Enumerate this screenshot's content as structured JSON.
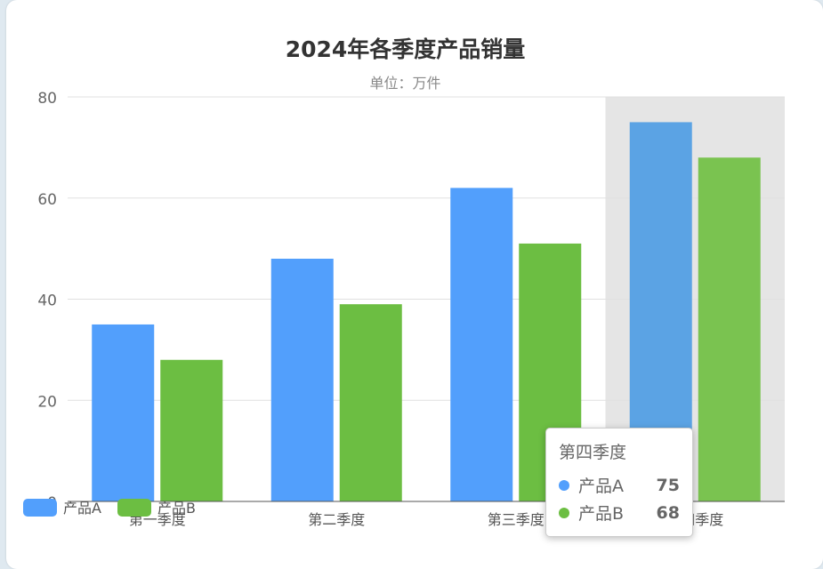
{
  "colors": {
    "series_a": "#529ffc",
    "series_b": "#6cbe42",
    "series_a_highlight": "#5ba3e4",
    "series_b_highlight": "#7ac350",
    "axis_pointer": "#e5e5e5",
    "grid": "#e0e0e0",
    "axis": "#555555"
  },
  "chart_data": {
    "type": "bar",
    "title": "2024年各季度产品销量",
    "subtitle": "单位：万件",
    "categories": [
      "第一季度",
      "第二季度",
      "第三季度",
      "第四季度"
    ],
    "series": [
      {
        "name": "产品A",
        "values": [
          35,
          48,
          62,
          75
        ]
      },
      {
        "name": "产品B",
        "values": [
          28,
          39,
          51,
          68
        ]
      }
    ],
    "ylim": [
      0,
      80
    ],
    "yticks": [
      0,
      20,
      40,
      60,
      80
    ],
    "grid": true,
    "legend": "bottom-left",
    "highlighted_category": "第四季度"
  },
  "tooltip": {
    "title": "第四季度",
    "rows": [
      {
        "name": "产品A",
        "value": "75",
        "icon": "blue-dot-icon"
      },
      {
        "name": "产品B",
        "value": "68",
        "icon": "green-dot-icon"
      }
    ]
  }
}
